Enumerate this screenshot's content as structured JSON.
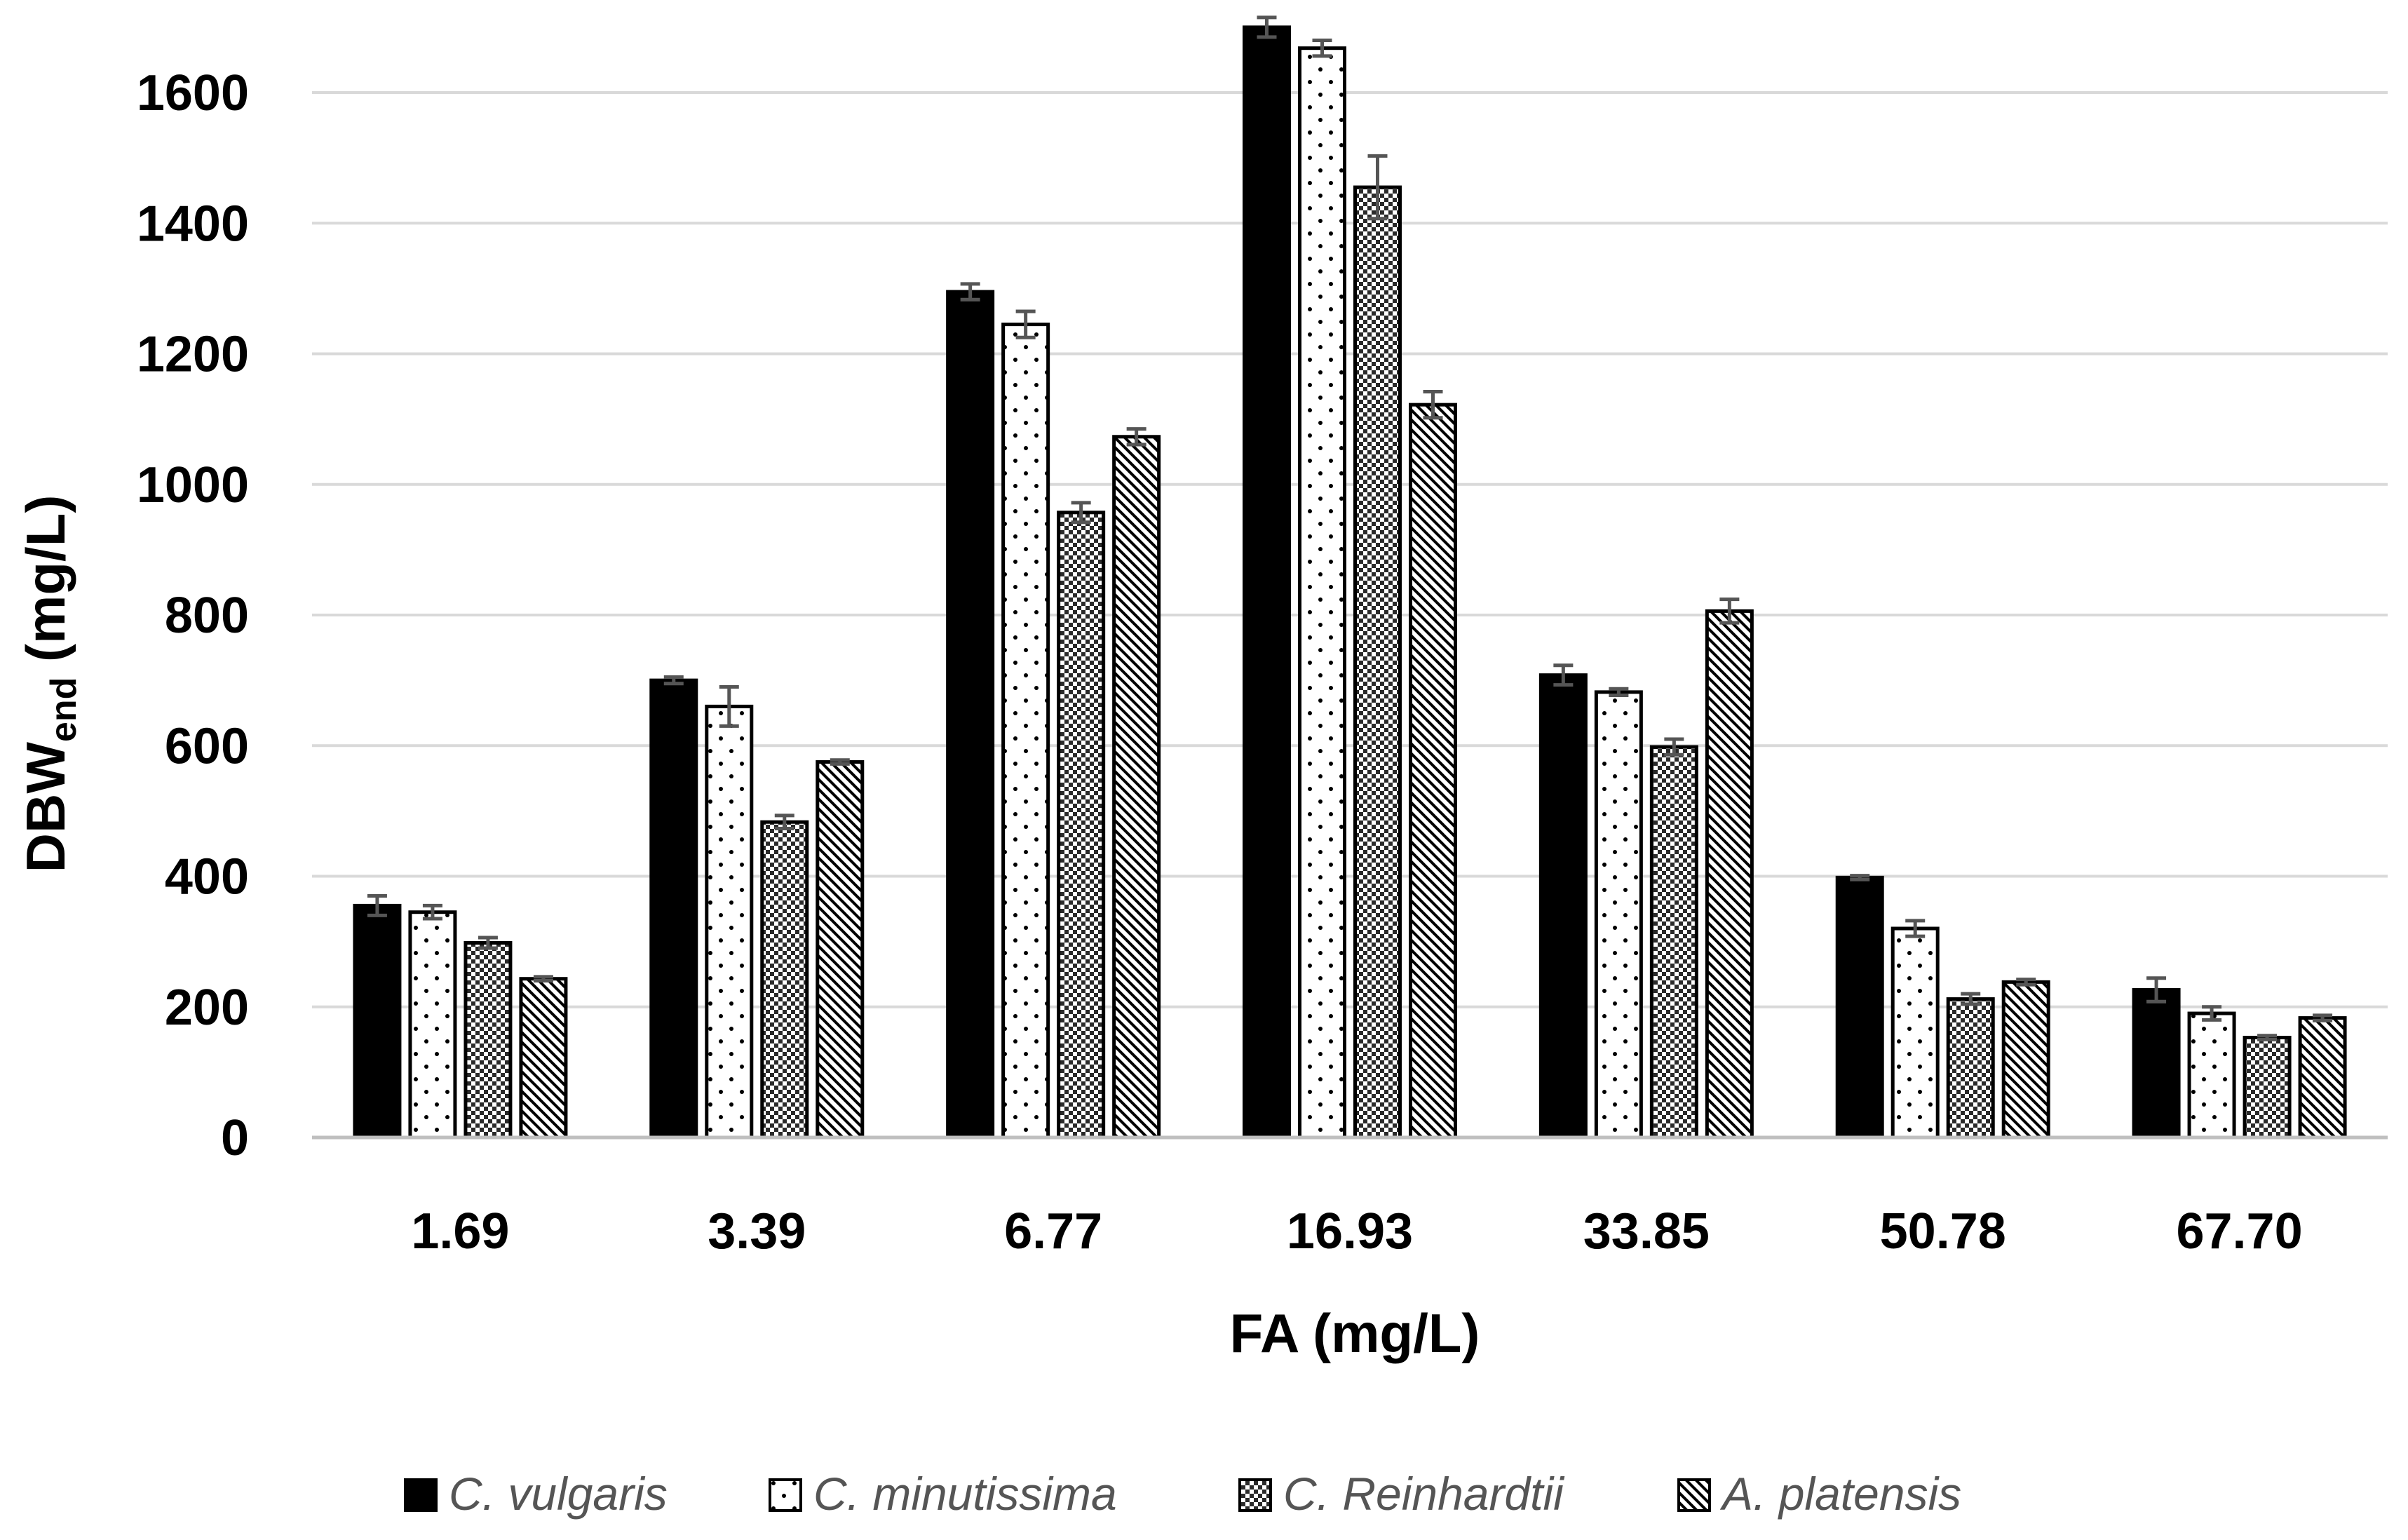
{
  "chart_data": {
    "type": "bar",
    "title": "",
    "xlabel": "FA (mg/L)",
    "ylabel": {
      "main": "DBW",
      "sub": "end",
      "unit": " (mg/L)"
    },
    "ylim": [
      0,
      1700
    ],
    "yticks": [
      0,
      200,
      400,
      600,
      800,
      1000,
      1200,
      1400,
      1600
    ],
    "grid": true,
    "legend_position": "bottom",
    "categories": [
      "1.69",
      "3.39",
      "6.77",
      "16.93",
      "33.85",
      "50.78",
      "67.70"
    ],
    "series": [
      {
        "name": "C. vulgaris",
        "pattern": "solid",
        "values": [
          355,
          700,
          1295,
          1700,
          708,
          398,
          226
        ],
        "errors": [
          15,
          5,
          12,
          15,
          15,
          3,
          18
        ]
      },
      {
        "name": "C. minutissima",
        "pattern": "dots",
        "values": [
          345,
          660,
          1245,
          1668,
          682,
          320,
          190
        ],
        "errors": [
          10,
          30,
          20,
          12,
          5,
          12,
          10
        ]
      },
      {
        "name": "C. Reinhardtii",
        "pattern": "checker",
        "values": [
          298,
          483,
          957,
          1455,
          598,
          212,
          153
        ],
        "errors": [
          8,
          10,
          15,
          48,
          12,
          8,
          3
        ]
      },
      {
        "name": "A. platensis",
        "pattern": "diagonal",
        "values": [
          243,
          575,
          1073,
          1122,
          806,
          238,
          183
        ],
        "errors": [
          3,
          3,
          12,
          20,
          18,
          4,
          4
        ]
      }
    ]
  }
}
